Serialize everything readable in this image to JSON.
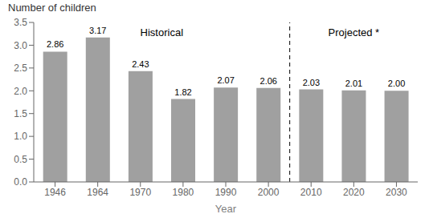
{
  "chart_data": {
    "type": "bar",
    "ylabel": "Number of children",
    "xlabel": "Year",
    "categories": [
      "1946",
      "1964",
      "1970",
      "1980",
      "1990",
      "2000",
      "2010",
      "2020",
      "2030"
    ],
    "values": [
      2.86,
      3.17,
      2.43,
      1.82,
      2.07,
      2.06,
      2.03,
      2.01,
      2.0
    ],
    "value_labels": [
      "2.86",
      "3.17",
      "2.43",
      "1.82",
      "2.07",
      "2.06",
      "2.03",
      "2.01",
      "2.00"
    ],
    "data_labels": true,
    "color": "#a0a0a0",
    "ylim": [
      0,
      3.5
    ],
    "yticks": [
      {
        "value": 0,
        "label": "0.0"
      },
      0.5,
      {
        "value": 1.0,
        "label": "1.0"
      },
      1.5,
      {
        "value": 2.0,
        "label": "2.0"
      },
      2.5,
      {
        "value": 3.0,
        "label": "3.0"
      },
      3.5
    ],
    "grid": false,
    "annotations": [
      {
        "text": "Historical",
        "categories": [
          "1946",
          "2000"
        ],
        "y": 3.28
      },
      {
        "text": "Projected *",
        "categories": [
          "2010",
          "2030"
        ],
        "y": 3.28
      }
    ]
  }
}
